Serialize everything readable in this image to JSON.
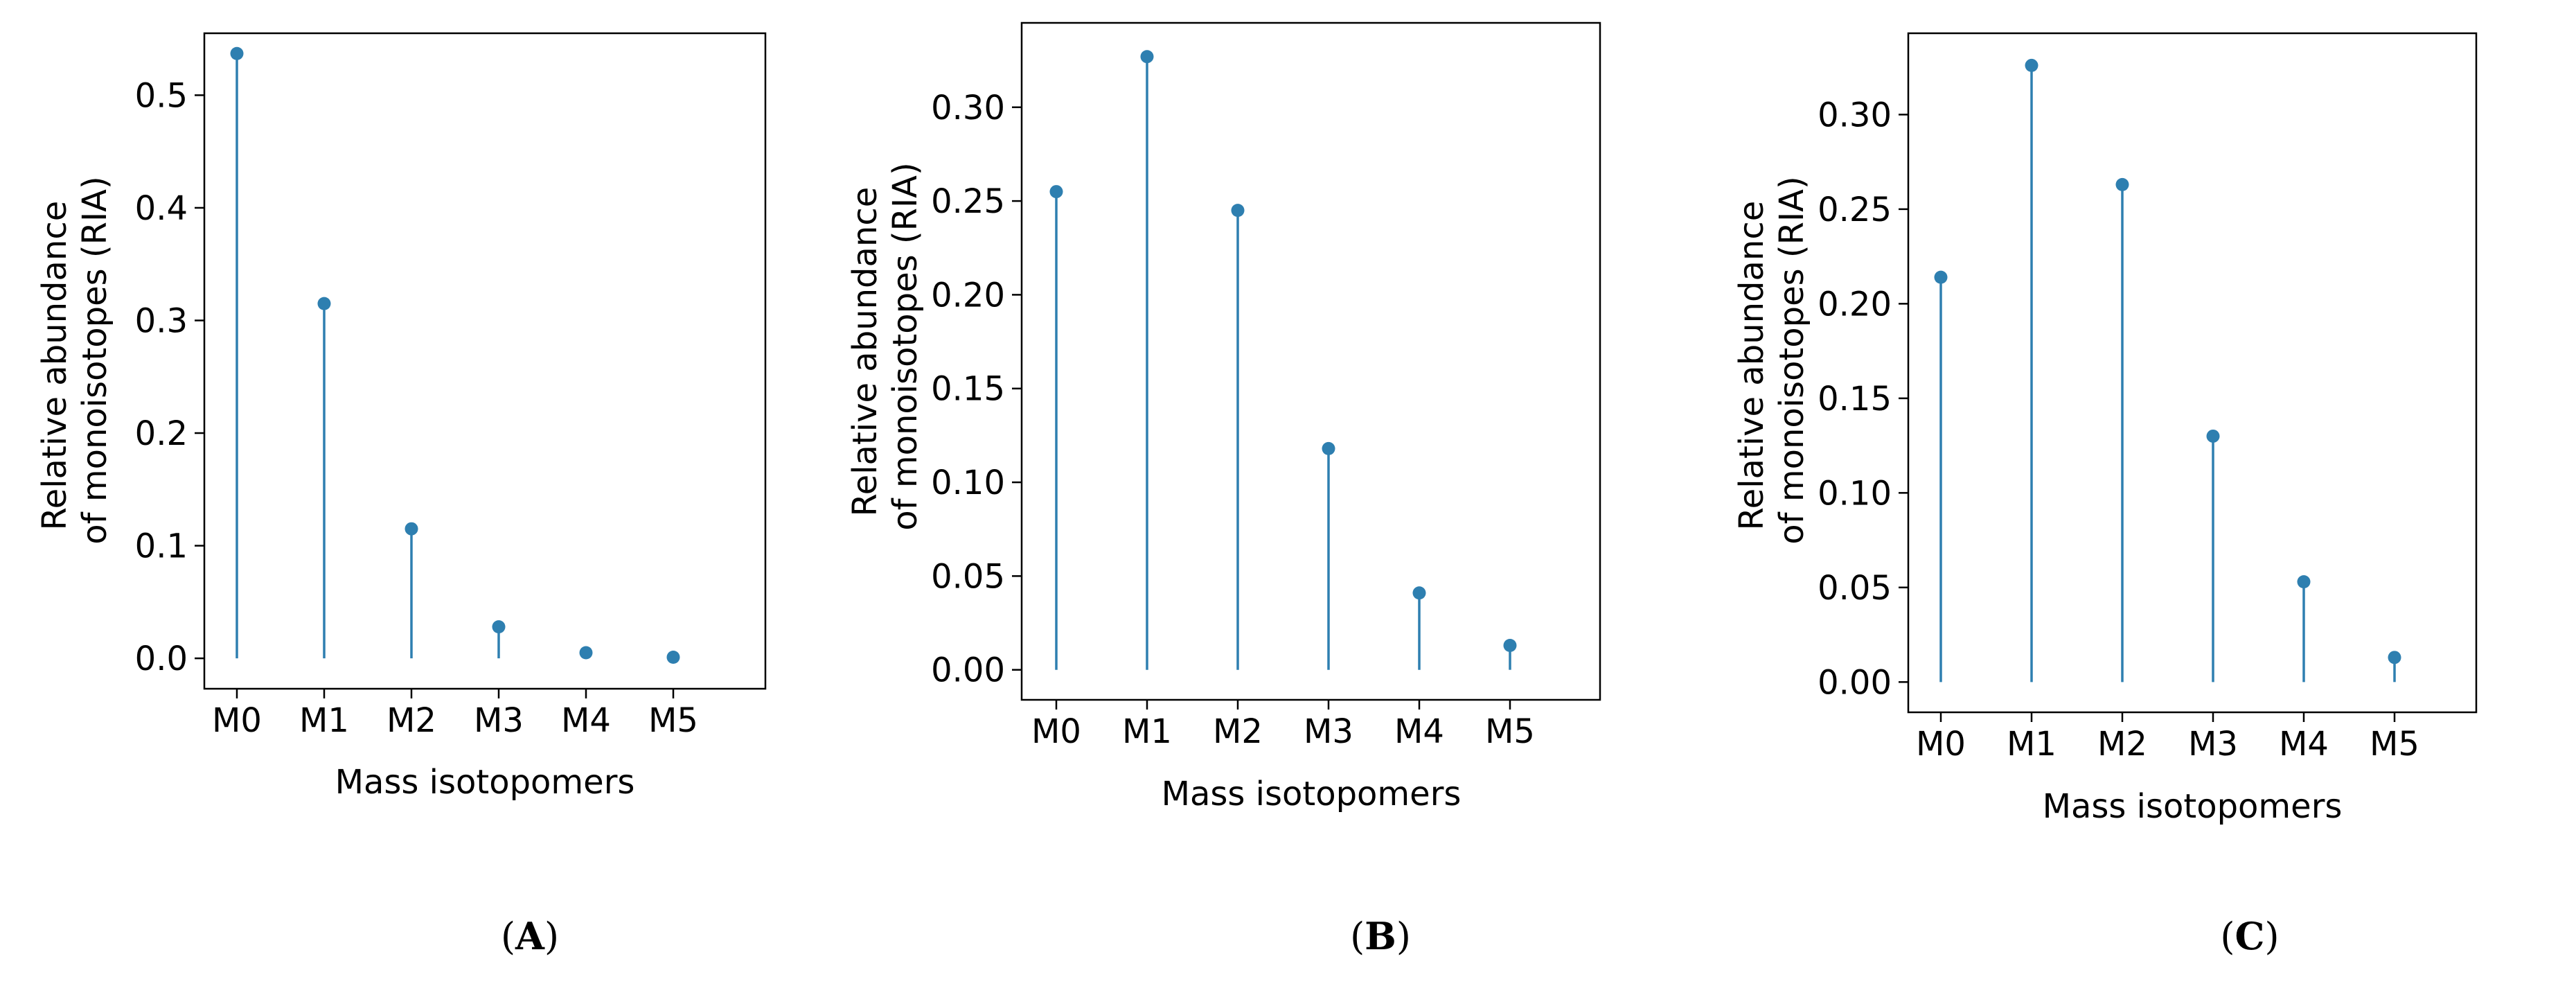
{
  "chart_data": [
    {
      "type": "stem",
      "panel": "(A)",
      "panel_letter": "A",
      "categories": [
        "M0",
        "M1",
        "M2",
        "M3",
        "M4",
        "M5"
      ],
      "values": [
        0.537,
        0.315,
        0.115,
        0.028,
        0.005,
        0.001
      ],
      "ylim": [
        -0.027,
        0.555
      ],
      "yticks": [
        0.0,
        0.1,
        0.2,
        0.3,
        0.4,
        0.5
      ],
      "ytick_labels": [
        "0.0",
        "0.1",
        "0.2",
        "0.3",
        "0.4",
        "0.5"
      ],
      "xlabel": "Mass isotopomers",
      "ylabel_lines": [
        "Relative abundance",
        "of monoisotopes (RIA)"
      ],
      "color": "#2e7fb0",
      "grid": false
    },
    {
      "type": "stem",
      "panel": "(B)",
      "panel_letter": "B",
      "categories": [
        "M0",
        "M1",
        "M2",
        "M3",
        "M4",
        "M5"
      ],
      "values": [
        0.255,
        0.327,
        0.245,
        0.118,
        0.041,
        0.013
      ],
      "ylim": [
        -0.016,
        0.345
      ],
      "yticks": [
        0.0,
        0.05,
        0.1,
        0.15,
        0.2,
        0.25,
        0.3
      ],
      "ytick_labels": [
        "0.00",
        "0.05",
        "0.10",
        "0.15",
        "0.20",
        "0.25",
        "0.30"
      ],
      "xlabel": "Mass isotopomers",
      "ylabel_lines": [
        "Relative abundance",
        "of monoisotopes (RIA)"
      ],
      "color": "#2e7fb0",
      "grid": false
    },
    {
      "type": "stem",
      "panel": "(C)",
      "panel_letter": "C",
      "categories": [
        "M0",
        "M1",
        "M2",
        "M3",
        "M4",
        "M5"
      ],
      "values": [
        0.214,
        0.326,
        0.263,
        0.13,
        0.053,
        0.013
      ],
      "ylim": [
        -0.016,
        0.343
      ],
      "yticks": [
        0.0,
        0.05,
        0.1,
        0.15,
        0.2,
        0.25,
        0.3
      ],
      "ytick_labels": [
        "0.00",
        "0.05",
        "0.10",
        "0.15",
        "0.20",
        "0.25",
        "0.30"
      ],
      "xlabel": "Mass isotopomers",
      "ylabel_lines": [
        "Relative abundance",
        "of monoisotopes (RIA)"
      ],
      "color": "#2e7fb0",
      "grid": false
    }
  ]
}
